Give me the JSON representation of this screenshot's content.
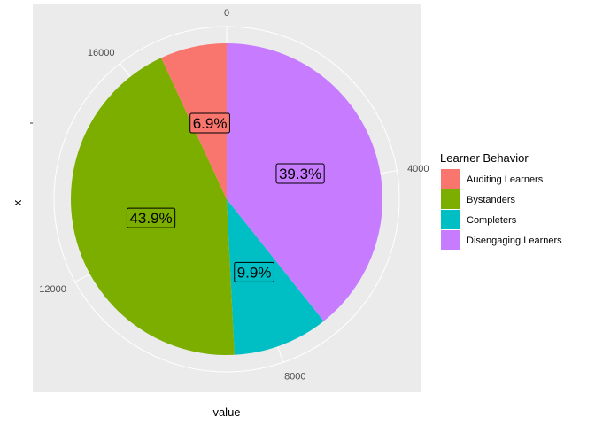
{
  "chart_data": {
    "type": "pie",
    "coord": "polar",
    "xlabel": "value",
    "ylabel": "x",
    "radial_ticks": [
      0,
      4000,
      8000,
      12000,
      16000
    ],
    "value_total": 17900,
    "legend": {
      "title": "Learner Behavior",
      "placement": "right"
    },
    "slices": [
      {
        "name": "Disengaging Learners",
        "value": 7035,
        "pct_label": "39.3%",
        "color": "#C77CFF"
      },
      {
        "name": "Completers",
        "value": 1772,
        "pct_label": "9.9%",
        "color": "#00BFC4"
      },
      {
        "name": "Bystanders",
        "value": 7858,
        "pct_label": "43.9%",
        "color": "#7CAE00"
      },
      {
        "name": "Auditing Learners",
        "value": 1235,
        "pct_label": "6.9%",
        "color": "#F8766D"
      }
    ],
    "panel_color": "#EBEBEB",
    "grid_color": "#FFFFFF"
  }
}
